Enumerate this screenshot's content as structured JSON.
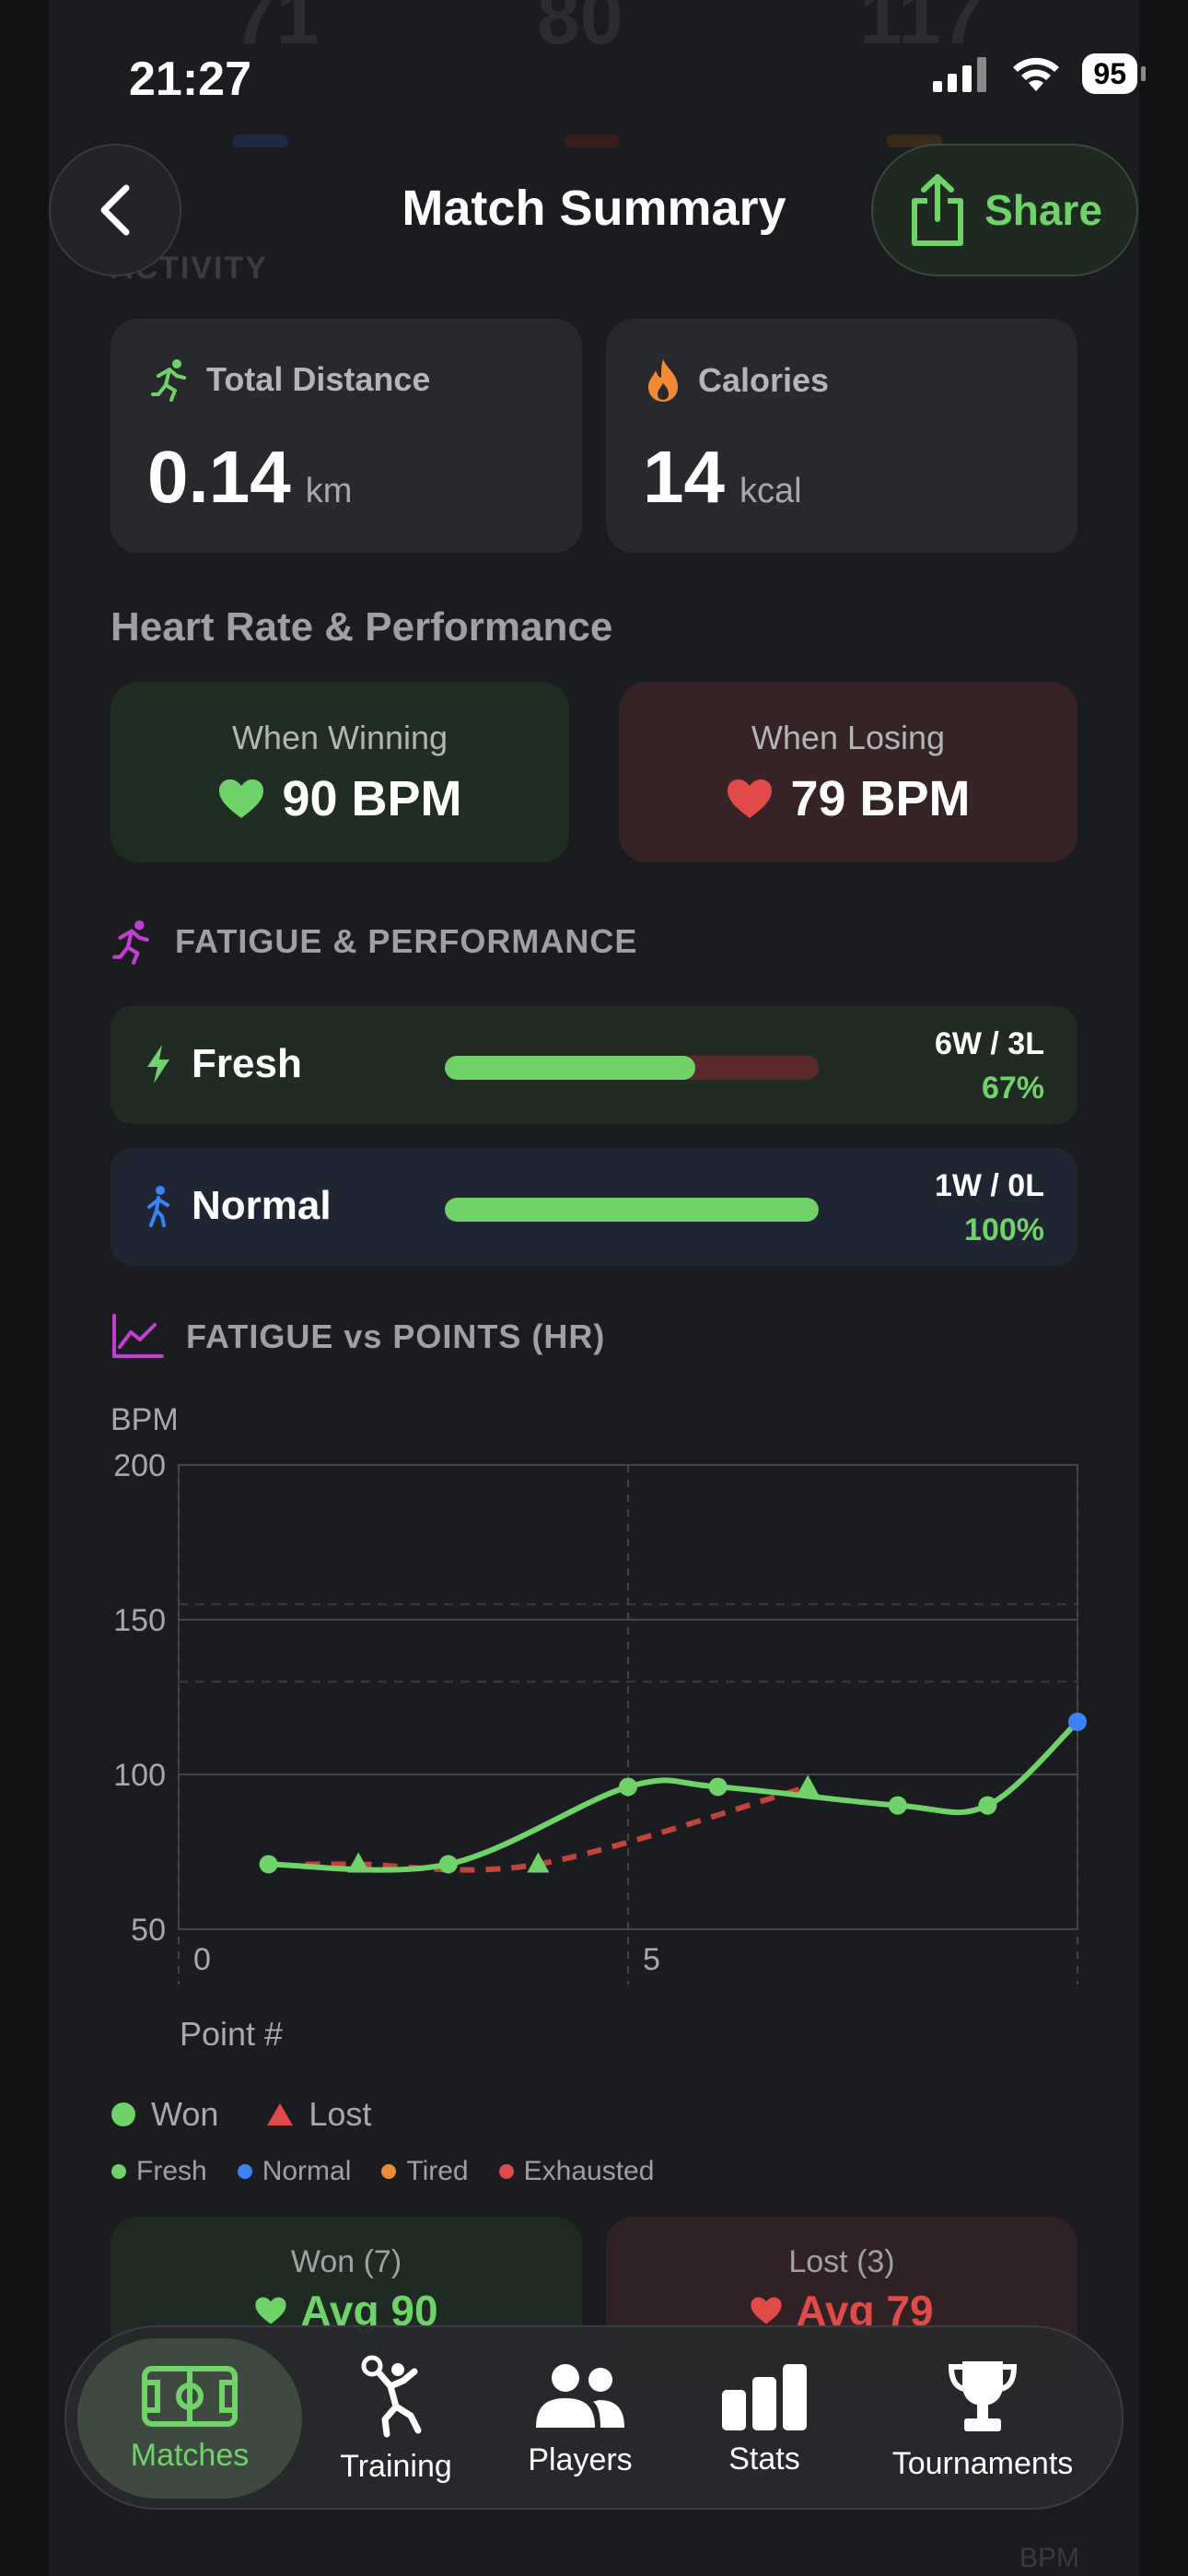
{
  "status_bar": {
    "time": "21:27",
    "battery": "95"
  },
  "background_faded": {
    "values": [
      "71",
      "80",
      "117"
    ],
    "label": "ACTIVITY"
  },
  "header": {
    "title": "Match Summary",
    "share_label": "Share"
  },
  "activity": {
    "distance": {
      "label": "Total Distance",
      "value": "0.14",
      "unit": "km"
    },
    "calories": {
      "label": "Calories",
      "value": "14",
      "unit": "kcal"
    }
  },
  "heart_rate": {
    "title": "Heart Rate & Performance",
    "winning": {
      "label": "When Winning",
      "value": "90 BPM"
    },
    "losing": {
      "label": "When Losing",
      "value": "79 BPM"
    }
  },
  "fatigue": {
    "title": "FATIGUE & PERFORMANCE",
    "rows": [
      {
        "name": "Fresh",
        "record": "6W / 3L",
        "percent": "67%",
        "win_fraction": 0.67
      },
      {
        "name": "Normal",
        "record": "1W / 0L",
        "percent": "100%",
        "win_fraction": 1.0
      }
    ]
  },
  "chart_section": {
    "title": "FATIGUE vs POINTS (HR)"
  },
  "chart_data": {
    "type": "line",
    "ylabel": "BPM",
    "xlabel": "Point #",
    "xlim": [
      0,
      10
    ],
    "ylim": [
      50,
      200
    ],
    "yticks": [
      "200",
      "150",
      "100",
      "50"
    ],
    "xticks": [
      "0",
      "5"
    ],
    "series": [
      {
        "name": "Won",
        "color": "#6fd36a",
        "marker": "circle",
        "x": [
          1,
          3,
          5,
          6,
          8,
          9,
          10
        ],
        "y": [
          71,
          71,
          96,
          96,
          90,
          90,
          117
        ]
      },
      {
        "name": "Lost",
        "color": "#c0443c",
        "marker": "triangle",
        "x": [
          2,
          4,
          7
        ],
        "y": [
          71,
          71,
          96
        ]
      }
    ],
    "point_fatigue": {
      "Fresh": "#6fd36a",
      "Normal": "#3b82f6"
    },
    "legend": [
      "Won",
      "Lost"
    ],
    "fatigue_legend": [
      {
        "label": "Fresh",
        "color": "#6fd36a"
      },
      {
        "label": "Normal",
        "color": "#3b82f6"
      },
      {
        "label": "Tired",
        "color": "#f08a35"
      },
      {
        "label": "Exhausted",
        "color": "#e04a48"
      }
    ]
  },
  "summary_cards": {
    "won": {
      "label": "Won (7)",
      "avg": "Avg 90"
    },
    "lost": {
      "label": "Lost (3)",
      "avg": "Avg 79"
    }
  },
  "tabbar": {
    "items": [
      {
        "label": "Matches",
        "icon": "court-icon"
      },
      {
        "label": "Training",
        "icon": "athlete-icon"
      },
      {
        "label": "Players",
        "icon": "people-icon"
      },
      {
        "label": "Stats",
        "icon": "bar-chart-icon"
      },
      {
        "label": "Tournaments",
        "icon": "trophy-icon"
      }
    ]
  },
  "footer_ghost": "BPM",
  "colors": {
    "accent": "#6fd36a",
    "loss": "#e04a48",
    "normal": "#3b82f6"
  }
}
